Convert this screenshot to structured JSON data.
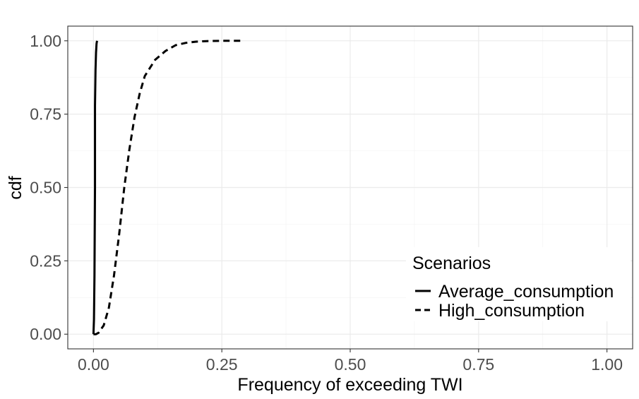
{
  "chart_data": {
    "type": "line",
    "xlabel": "Frequency of exceeding TWI",
    "ylabel": "cdf",
    "xlim": [
      -0.05,
      1.05
    ],
    "ylim": [
      -0.05,
      1.05
    ],
    "x_ticks": [
      0.0,
      0.25,
      0.5,
      0.75,
      1.0
    ],
    "x_tick_labels": [
      "0.00",
      "0.25",
      "0.50",
      "0.75",
      "1.00"
    ],
    "y_ticks": [
      0.0,
      0.25,
      0.5,
      0.75,
      1.0
    ],
    "y_tick_labels": [
      "0.00",
      "0.25",
      "0.50",
      "0.75",
      "1.00"
    ],
    "grid": true,
    "legend": {
      "title": "Scenarios",
      "position": "bottom-right",
      "entries": [
        "Average_consumption",
        "High_consumption"
      ]
    },
    "series": [
      {
        "name": "Average_consumption",
        "line_style": "solid",
        "color": "#000000",
        "x": [
          0.0,
          0.001,
          0.002,
          0.003,
          0.003,
          0.004,
          0.005,
          0.006,
          0.007
        ],
        "y": [
          0.0,
          0.05,
          0.2,
          0.5,
          0.78,
          0.9,
          0.96,
          0.99,
          1.0
        ]
      },
      {
        "name": "High_consumption",
        "line_style": "dashed",
        "color": "#000000",
        "x": [
          0.0,
          0.005,
          0.01,
          0.02,
          0.03,
          0.04,
          0.05,
          0.06,
          0.07,
          0.08,
          0.09,
          0.1,
          0.12,
          0.14,
          0.16,
          0.18,
          0.2,
          0.22,
          0.25,
          0.29
        ],
        "y": [
          0.0,
          0.0,
          0.005,
          0.03,
          0.09,
          0.2,
          0.34,
          0.5,
          0.63,
          0.74,
          0.82,
          0.88,
          0.935,
          0.965,
          0.985,
          0.993,
          0.997,
          0.999,
          1.0,
          1.0
        ]
      }
    ]
  }
}
